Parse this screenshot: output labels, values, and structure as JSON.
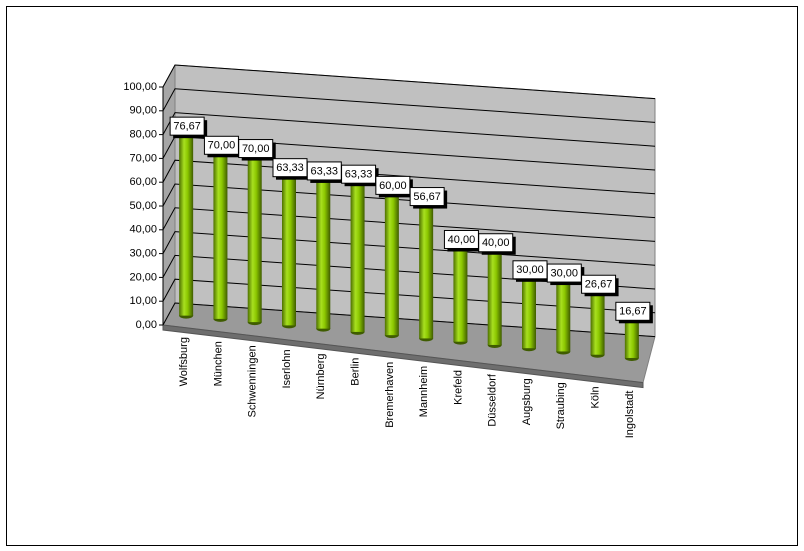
{
  "chart_data": {
    "type": "bar3d",
    "categories": [
      "Wolfsburg",
      "München",
      "Schwenningen",
      "Iserlohn",
      "Nürnberg",
      "Berlin",
      "Bremerhaven",
      "Mannheim",
      "Krefeld",
      "Düsseldorf",
      "Augsburg",
      "Straubing",
      "Köln",
      "Ingolstadt"
    ],
    "values": [
      76.67,
      70.0,
      70.0,
      63.33,
      63.33,
      63.33,
      60.0,
      56.67,
      40.0,
      40.0,
      30.0,
      30.0,
      26.67,
      16.67
    ],
    "value_labels": [
      "76,67",
      "70,00",
      "70,00",
      "63,33",
      "63,33",
      "63,33",
      "60,00",
      "56,67",
      "40,00",
      "40,00",
      "30,00",
      "30,00",
      "26,67",
      "16,67"
    ],
    "color": "#8cc800",
    "ylim": [
      0,
      100
    ],
    "yticks": [
      {
        "value": 0,
        "label": "0,00"
      },
      {
        "value": 10,
        "label": "10,00"
      },
      {
        "value": 20,
        "label": "20,00"
      },
      {
        "value": 30,
        "label": "30,00"
      },
      {
        "value": 40,
        "label": "40,00"
      },
      {
        "value": 50,
        "label": "50,00"
      },
      {
        "value": 60,
        "label": "60,00"
      },
      {
        "value": 70,
        "label": "70,00"
      },
      {
        "value": 80,
        "label": "80,00"
      },
      {
        "value": 90,
        "label": "90,00"
      },
      {
        "value": 100,
        "label": "100,00"
      }
    ],
    "grid": true
  }
}
